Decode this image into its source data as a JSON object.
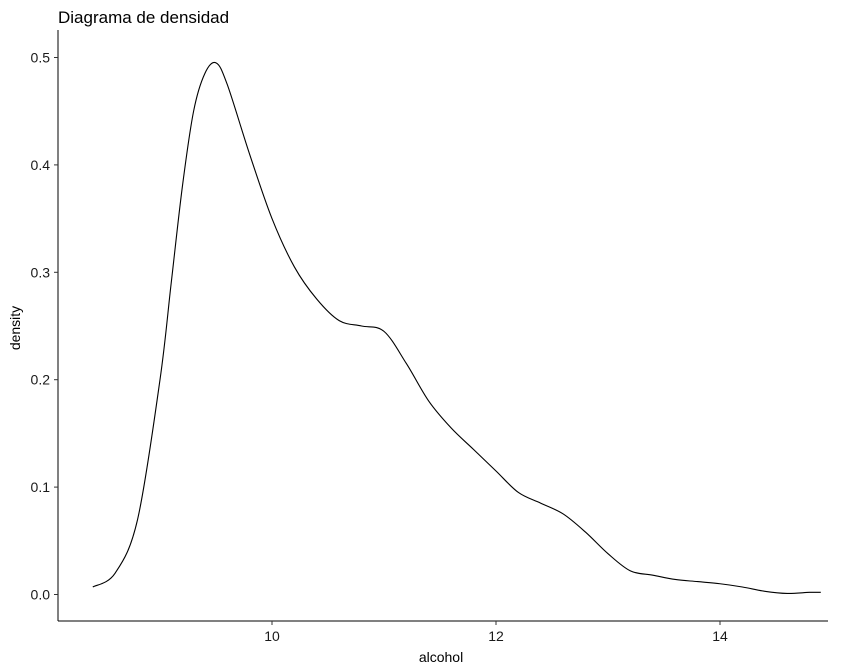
{
  "chart_data": {
    "type": "line",
    "title": "Diagrama de densidad",
    "xlabel": "alcohol",
    "ylabel": "density",
    "xlim": [
      8.4,
      14.9
    ],
    "ylim": [
      0,
      0.5
    ],
    "x_ticks": [
      10,
      12,
      14
    ],
    "x_tick_labels": [
      "10",
      "12",
      "14"
    ],
    "y_ticks": [
      0.0,
      0.1,
      0.2,
      0.3,
      0.4,
      0.5
    ],
    "y_tick_labels": [
      "0.0",
      "0.1",
      "0.2",
      "0.3",
      "0.4",
      "0.5"
    ],
    "grid": false,
    "series": [
      {
        "x": [
          8.4,
          8.6,
          8.8,
          9.0,
          9.1,
          9.2,
          9.3,
          9.4,
          9.5,
          9.6,
          9.8,
          10.0,
          10.2,
          10.4,
          10.6,
          10.8,
          11.0,
          11.2,
          11.4,
          11.6,
          11.8,
          12.0,
          12.2,
          12.4,
          12.6,
          12.8,
          13.0,
          13.2,
          13.4,
          13.6,
          13.8,
          14.0,
          14.2,
          14.4,
          14.6,
          14.8,
          14.9
        ],
        "y": [
          0.007,
          0.02,
          0.07,
          0.2,
          0.29,
          0.38,
          0.45,
          0.485,
          0.495,
          0.475,
          0.41,
          0.35,
          0.305,
          0.275,
          0.255,
          0.25,
          0.245,
          0.215,
          0.18,
          0.155,
          0.135,
          0.115,
          0.095,
          0.085,
          0.075,
          0.058,
          0.038,
          0.022,
          0.018,
          0.014,
          0.012,
          0.01,
          0.007,
          0.003,
          0.001,
          0.002,
          0.002
        ]
      }
    ]
  }
}
